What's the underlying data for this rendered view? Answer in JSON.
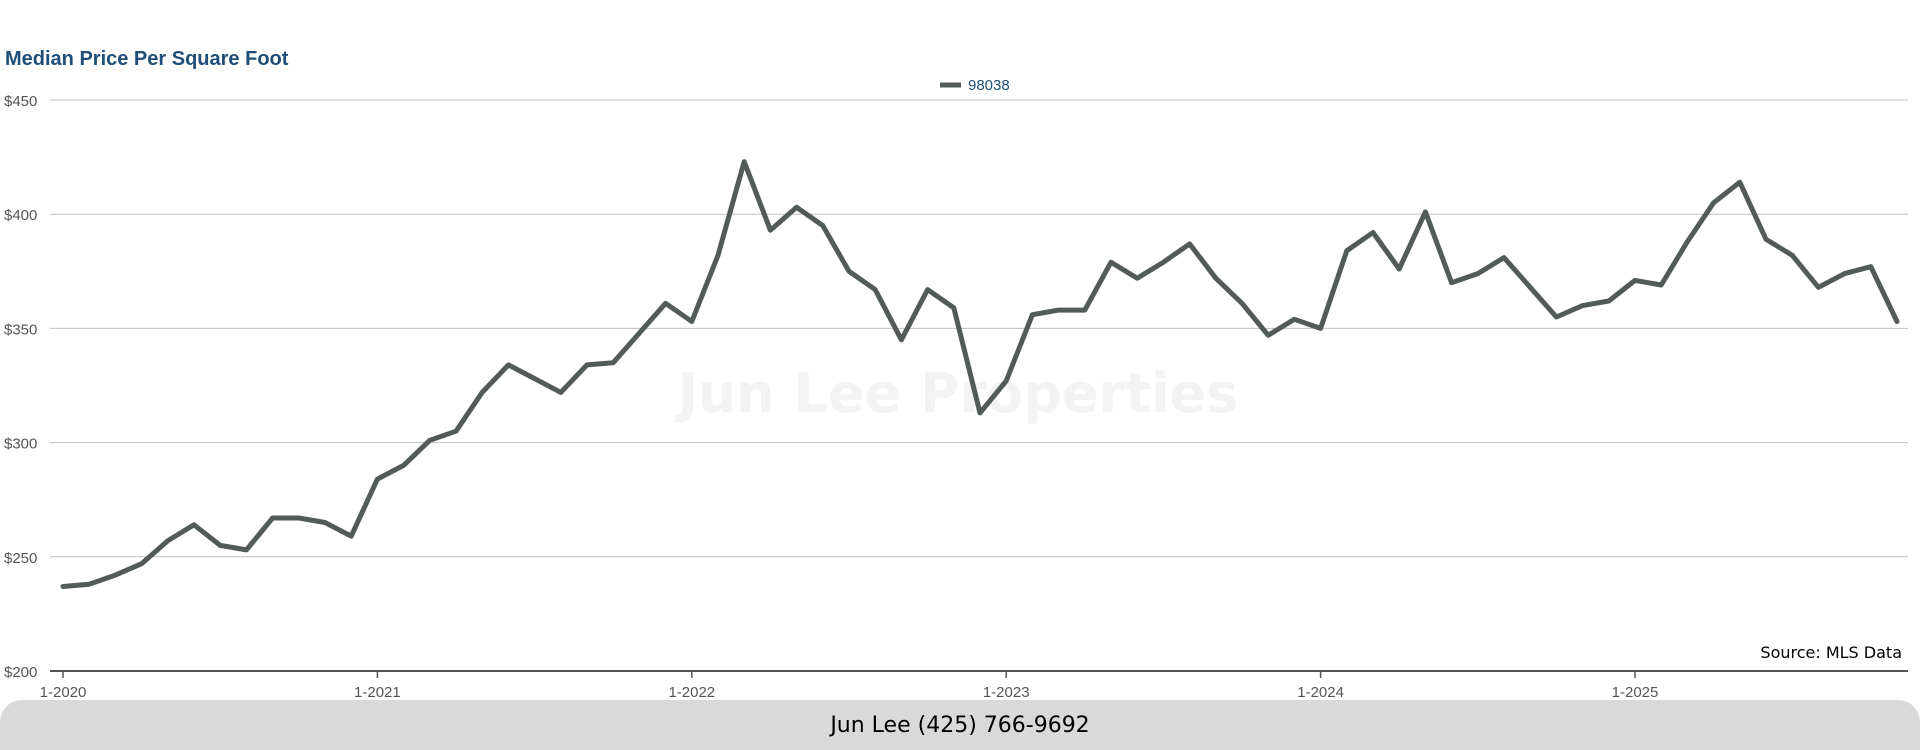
{
  "colors": {
    "title": "#1f4e79",
    "line": "#525a5a",
    "grid": "#c0c0c0",
    "axis": "#555555",
    "tick_text": "#555555",
    "legend_text": "#1f4e79",
    "watermark": "#f3f3f3"
  },
  "chart_data": {
    "type": "line",
    "title": "Median Price Per Square Foot",
    "xlabel": "",
    "ylabel": "",
    "legend_position": "top-center",
    "grid": true,
    "ylim": [
      200,
      450
    ],
    "yticks": [
      200,
      250,
      300,
      350,
      400,
      450
    ],
    "ytick_labels": [
      "$200",
      "$250",
      "$300",
      "$350",
      "$400",
      "$450"
    ],
    "xtick_labels": [
      "1-2020",
      "1-2021",
      "1-2022",
      "1-2023",
      "1-2024",
      "1-2025"
    ],
    "x_start": "1-2020",
    "x_end": "11-2025",
    "series": [
      {
        "name": "98038",
        "values": [
          237,
          238,
          242,
          247,
          257,
          264,
          255,
          253,
          267,
          267,
          265,
          259,
          284,
          290,
          301,
          305,
          322,
          334,
          328,
          322,
          334,
          335,
          348,
          361,
          353,
          382,
          423,
          393,
          403,
          395,
          375,
          367,
          345,
          367,
          359,
          313,
          327,
          356,
          358,
          358,
          379,
          372,
          379,
          387,
          372,
          361,
          347,
          354,
          350,
          384,
          392,
          376,
          401,
          370,
          374,
          381,
          368,
          355,
          360,
          362,
          371,
          369,
          388,
          405,
          414,
          389,
          382,
          368,
          374,
          377,
          353
        ]
      }
    ],
    "annotations": [
      "Source: MLS Data"
    ]
  },
  "watermark": "Jun Lee Properties",
  "footer": {
    "text": "Jun Lee (425) 766-9692"
  }
}
